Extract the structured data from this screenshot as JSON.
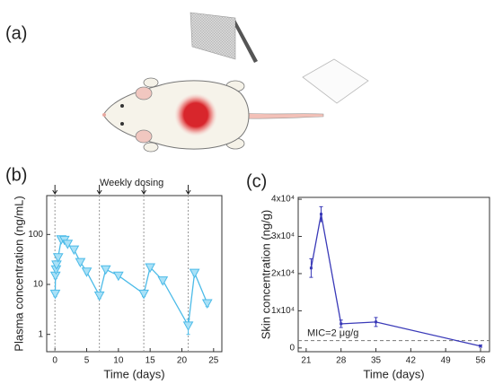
{
  "labels": {
    "a": "(a)",
    "b": "(b)",
    "c": "(c)"
  },
  "chart_data": [
    {
      "type": "line",
      "log_y": true,
      "x_label": "Time (days)",
      "y_label": "Plasma concentration (ng/mL)",
      "annotation": "Weekly dosing",
      "dosing_days": [
        0,
        7,
        14,
        21
      ],
      "x": [
        0.04,
        0.08,
        0.17,
        0.25,
        0.5,
        1,
        1.5,
        2,
        3,
        4,
        5,
        7,
        8,
        10,
        14,
        15,
        17,
        21,
        22,
        24
      ],
      "values": [
        6.5,
        15,
        20,
        25,
        35,
        80,
        78,
        65,
        50,
        28,
        18,
        6,
        20,
        15,
        6.5,
        22,
        12,
        1.5,
        17,
        4.2
      ],
      "errors": [
        0.8,
        2,
        2.5,
        3,
        4,
        8,
        7,
        6,
        5,
        3,
        2,
        0.8,
        2,
        1.5,
        0.8,
        2.5,
        1.5,
        0.5,
        2,
        0.6
      ],
      "color": "#4cbbe8",
      "xlim": [
        -1.3,
        26.3
      ],
      "xticks": [
        0,
        5,
        10,
        15,
        20,
        25
      ],
      "ylim": [
        0.45,
        600
      ],
      "yticks": [
        1,
        10,
        100
      ]
    },
    {
      "type": "line",
      "log_y": false,
      "x_label": "Time (days)",
      "y_label": "Skin concentration (ng/g)",
      "x": [
        22,
        24,
        28,
        35,
        56
      ],
      "values": [
        21500,
        36000,
        6500,
        7000,
        500
      ],
      "errors": [
        2500,
        2000,
        1000,
        1200,
        300
      ],
      "color": "#3a3ab8",
      "reference_line": {
        "value": 2000,
        "label": "MIC=2 μg/g"
      },
      "xlim": [
        19.4,
        57.8
      ],
      "xticks": [
        21,
        28,
        35,
        42,
        49,
        56
      ],
      "ylim": [
        -1000,
        40500
      ],
      "yticks": [
        0,
        {
          "value": 10000,
          "label": "1x10⁴"
        },
        {
          "value": 20000,
          "label": "2x10⁴"
        },
        {
          "value": 30000,
          "label": "3x10⁴"
        },
        {
          "value": 40000,
          "label": "4x10⁴"
        }
      ]
    }
  ]
}
